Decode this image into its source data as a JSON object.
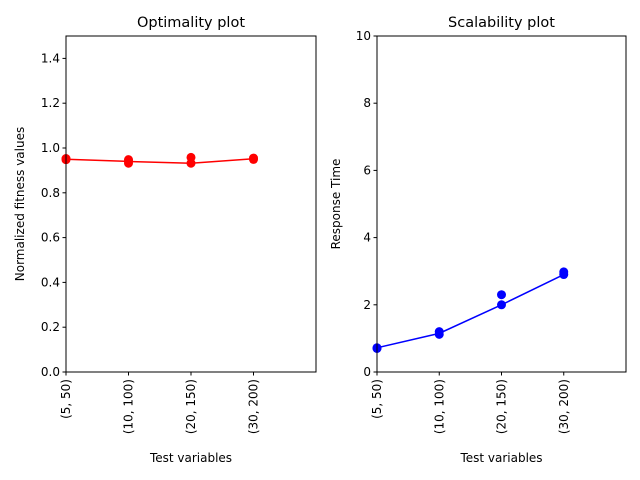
{
  "chart_data": [
    {
      "type": "line",
      "title": "Optimality plot",
      "xlabel": "Test variables",
      "ylabel": "Normalized fitness values",
      "categories": [
        "(5, 50)",
        "(10, 100)",
        "(20, 150)",
        "(30, 200)"
      ],
      "xlim": [
        0,
        4
      ],
      "ylim": [
        0,
        1.5
      ],
      "yticks": [
        "0.0",
        "0.2",
        "0.4",
        "0.6",
        "0.8",
        "1.0",
        "1.2",
        "1.4"
      ],
      "grid": false,
      "line": {
        "x": [
          0,
          1,
          2,
          3
        ],
        "y": [
          0.95,
          0.94,
          0.932,
          0.952
        ],
        "color": "#ff0000"
      },
      "points": {
        "x": [
          0,
          0,
          1,
          1,
          1,
          2,
          2,
          3,
          3
        ],
        "y": [
          0.953,
          0.948,
          0.948,
          0.942,
          0.932,
          0.958,
          0.932,
          0.955,
          0.949
        ],
        "color": "#ff0000"
      }
    },
    {
      "type": "line",
      "title": "Scalability plot",
      "xlabel": "Test variables",
      "ylabel": "Response Time",
      "categories": [
        "(5, 50)",
        "(10, 100)",
        "(20, 150)",
        "(30, 200)"
      ],
      "xlim": [
        0,
        4
      ],
      "ylim": [
        0,
        10
      ],
      "yticks": [
        "0",
        "2",
        "4",
        "6",
        "8",
        "10"
      ],
      "grid": false,
      "line": {
        "x": [
          0,
          1,
          2,
          3
        ],
        "y": [
          0.72,
          1.15,
          2.0,
          2.9
        ],
        "color": "#0000ff"
      },
      "points": {
        "x": [
          0,
          0,
          1,
          1,
          2,
          2,
          3,
          3
        ],
        "y": [
          0.72,
          0.7,
          1.2,
          1.12,
          2.3,
          2.0,
          2.98,
          2.9
        ],
        "color": "#0000ff"
      }
    }
  ]
}
